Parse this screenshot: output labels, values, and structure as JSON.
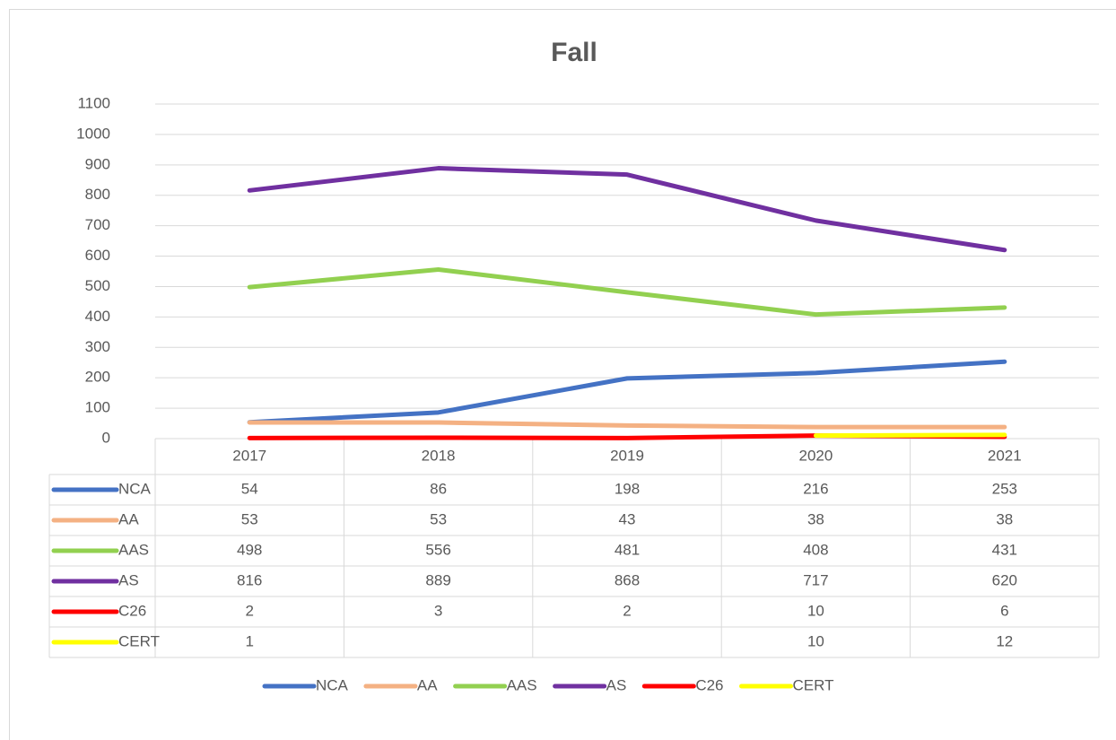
{
  "chart_data": {
    "type": "line",
    "title": "Fall",
    "categories": [
      "2017",
      "2018",
      "2019",
      "2020",
      "2021"
    ],
    "series": [
      {
        "name": "NCA",
        "color": "#4472c4",
        "values": [
          54,
          86,
          198,
          216,
          253
        ]
      },
      {
        "name": "AA",
        "color": "#f4b183",
        "values": [
          53,
          53,
          43,
          38,
          38
        ]
      },
      {
        "name": "AAS",
        "color": "#92d050",
        "values": [
          498,
          556,
          481,
          408,
          431
        ]
      },
      {
        "name": "AS",
        "color": "#7030a0",
        "values": [
          816,
          889,
          868,
          717,
          620
        ]
      },
      {
        "name": "C26",
        "color": "#ff0000",
        "values": [
          2,
          3,
          2,
          10,
          6
        ]
      },
      {
        "name": "CERT",
        "color": "#ffff00",
        "values": [
          1,
          null,
          null,
          10,
          12
        ]
      }
    ],
    "ylim": [
      0,
      1100
    ],
    "yticks": [
      0,
      100,
      200,
      300,
      400,
      500,
      600,
      700,
      800,
      900,
      1000,
      1100
    ],
    "grid": true,
    "legend": "bottom"
  }
}
